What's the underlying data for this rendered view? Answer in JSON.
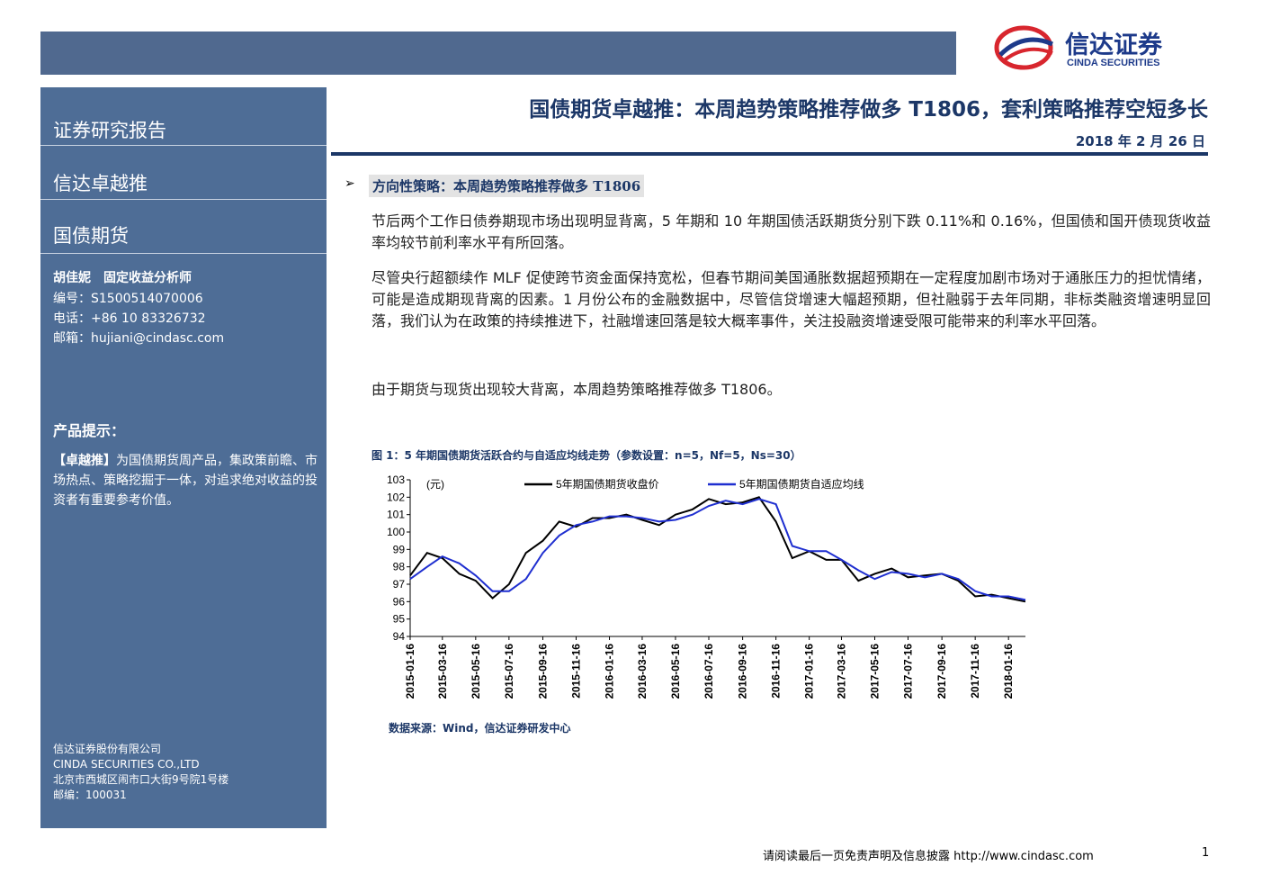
{
  "header": {
    "logo_cn": "信达证券",
    "logo_en": "CINDA SECURITIES"
  },
  "title": "国债期货卓越推：本周趋势策略推荐做多 T1806，套利策略推荐空短多长",
  "date": "2018 年 2 月 26 日",
  "sidebar": {
    "items": [
      "证券研究报告",
      "信达卓越推",
      "国债期货"
    ],
    "author": "胡佳妮　固定收益分析师",
    "contacts": [
      "编号：S1500514070006",
      "电话：+86 10 83326732",
      "邮箱：hujiani@cindasc.com"
    ],
    "tip_title": "产品提示：",
    "tip_lead": "【卓越推】",
    "tip_text": "为国债期货周产品，集政策前瞻、市场热点、策略挖掘于一体，对追求绝对收益的投资者有重要参考价值。",
    "company": [
      "信达证券股份有限公司",
      "CINDA SECURITIES CO.,LTD",
      "北京市西城区闹市口大街9号院1号楼",
      "邮编：100031"
    ]
  },
  "section": {
    "heading": "方向性策略：本周趋势策略推荐做多 T1806",
    "paragraphs": [
      "节后两个工作日债券期现市场出现明显背离，5 年期和 10 年期国债活跃期货分别下跌 0.11%和 0.16%，但国债和国开债现货收益率均较节前利率水平有所回落。",
      "尽管央行超额续作 MLF 促使跨节资金面保持宽松，但春节期间美国通胀数据超预期在一定程度加剧市场对于通胀压力的担忧情绪，可能是造成期现背离的因素。1 月份公布的金融数据中，尽管信贷增速大幅超预期，但社融弱于去年同期，非标类融资增速明显回落，我们认为在政策的持续推进下，社融增速回落是较大概率事件，关注投融资增速受限可能带来的利率水平回落。",
      "由于期货与现货出现较大背离，本周趋势策略推荐做多 T1806。"
    ]
  },
  "chart_data": {
    "type": "line",
    "caption": "图 1：5 年期国债期货活跃合约与自适应均线走势（参数设置：n=5，Nf=5，Ns=30）",
    "ylabel": "(元)",
    "x": [
      "2015-01-16",
      "2015-02-16",
      "2015-03-16",
      "2015-04-16",
      "2015-05-16",
      "2015-06-16",
      "2015-07-16",
      "2015-08-16",
      "2015-09-16",
      "2015-10-16",
      "2015-11-16",
      "2015-12-16",
      "2016-01-16",
      "2016-02-16",
      "2016-03-16",
      "2016-04-16",
      "2016-05-16",
      "2016-06-16",
      "2016-07-16",
      "2016-08-16",
      "2016-09-16",
      "2016-10-16",
      "2016-11-16",
      "2016-12-16",
      "2017-01-16",
      "2017-02-16",
      "2017-03-16",
      "2017-04-16",
      "2017-05-16",
      "2017-06-16",
      "2017-07-16",
      "2017-08-16",
      "2017-09-16",
      "2017-10-16",
      "2017-11-16",
      "2017-12-16",
      "2018-01-16",
      "2018-02-16"
    ],
    "series": [
      {
        "name": "5年期国债期货收盘价",
        "color": "#000000",
        "values": [
          97.5,
          98.8,
          98.5,
          97.6,
          97.2,
          96.2,
          97.0,
          98.8,
          99.5,
          100.6,
          100.3,
          100.8,
          100.8,
          101.0,
          100.7,
          100.4,
          101.0,
          101.3,
          101.9,
          101.6,
          101.7,
          102.0,
          100.6,
          98.5,
          98.9,
          98.4,
          98.4,
          97.2,
          97.6,
          97.9,
          97.4,
          97.5,
          97.6,
          97.2,
          96.3,
          96.4,
          96.2,
          96.0
        ]
      },
      {
        "name": "5年期国债期货自适应均线",
        "color": "#1f2fd0",
        "values": [
          97.3,
          98.0,
          98.6,
          98.2,
          97.5,
          96.6,
          96.6,
          97.3,
          98.8,
          99.8,
          100.4,
          100.6,
          100.9,
          100.9,
          100.8,
          100.6,
          100.7,
          101.0,
          101.5,
          101.8,
          101.6,
          101.9,
          101.6,
          99.2,
          98.9,
          98.9,
          98.4,
          97.8,
          97.3,
          97.7,
          97.6,
          97.4,
          97.6,
          97.3,
          96.6,
          96.3,
          96.3,
          96.1
        ]
      }
    ],
    "ylim": [
      94,
      103
    ],
    "yticks": [
      94,
      95,
      96,
      97,
      98,
      99,
      100,
      101,
      102,
      103
    ],
    "xticks": [
      "2015-01-16",
      "2015-03-16",
      "2015-05-16",
      "2015-07-16",
      "2015-09-16",
      "2015-11-16",
      "2016-01-16",
      "2016-03-16",
      "2016-05-16",
      "2016-07-16",
      "2016-09-16",
      "2016-11-16",
      "2017-01-16",
      "2017-03-16",
      "2017-05-16",
      "2017-07-16",
      "2017-09-16",
      "2017-11-16",
      "2018-01-16"
    ],
    "source": "数据来源：Wind，信达证券研发中心"
  },
  "footer": {
    "disclaimer": "请阅读最后一页免责声明及信息披露 http://www.cindasc.com",
    "page": "1"
  }
}
